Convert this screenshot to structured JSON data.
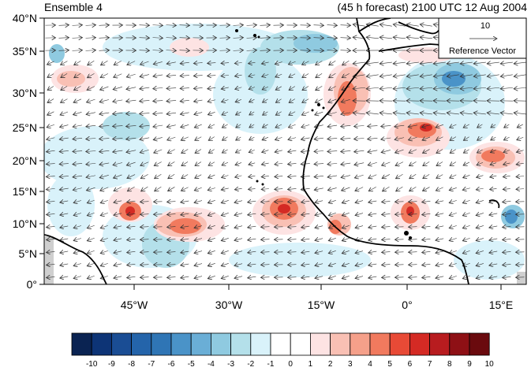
{
  "header": {
    "left_title": "Ensemble 4",
    "right_title": "(45 h forecast) 2100 UTC 12 Aug 2004"
  },
  "axes": {
    "lat_labels": [
      "40°N",
      "35°N",
      "30°N",
      "25°N",
      "20°N",
      "15°N",
      "10°N",
      "5°N",
      "0°"
    ],
    "lon_labels": [
      "45°W",
      "30°W",
      "15°W",
      "0°",
      "15°E"
    ]
  },
  "reference_vector": {
    "magnitude": "10",
    "label": "Reference Vector"
  },
  "colorbar": {
    "labels": [
      "-10",
      "-9",
      "-8",
      "-7",
      "-6",
      "-5",
      "-4",
      "-3",
      "-2",
      "-1",
      "0",
      "1",
      "2",
      "3",
      "4",
      "5",
      "6",
      "7",
      "8",
      "9",
      "10"
    ],
    "colors": [
      "#0a2352",
      "#0d3476",
      "#1a4d94",
      "#2464aa",
      "#2f75b5",
      "#4a93c8",
      "#6aaed6",
      "#8fcae0",
      "#b4e0ea",
      "#d9f2fa",
      "#ffffff",
      "#ffffff",
      "#fde3e3",
      "#f9c0b4",
      "#f5a08a",
      "#f17a5e",
      "#e84a36",
      "#d42a24",
      "#b81c1f",
      "#8e1015",
      "#6a0a0e"
    ]
  },
  "colors": {
    "land": "#ffffff",
    "coast": "#000000",
    "missing": "#cfcfcf"
  }
}
